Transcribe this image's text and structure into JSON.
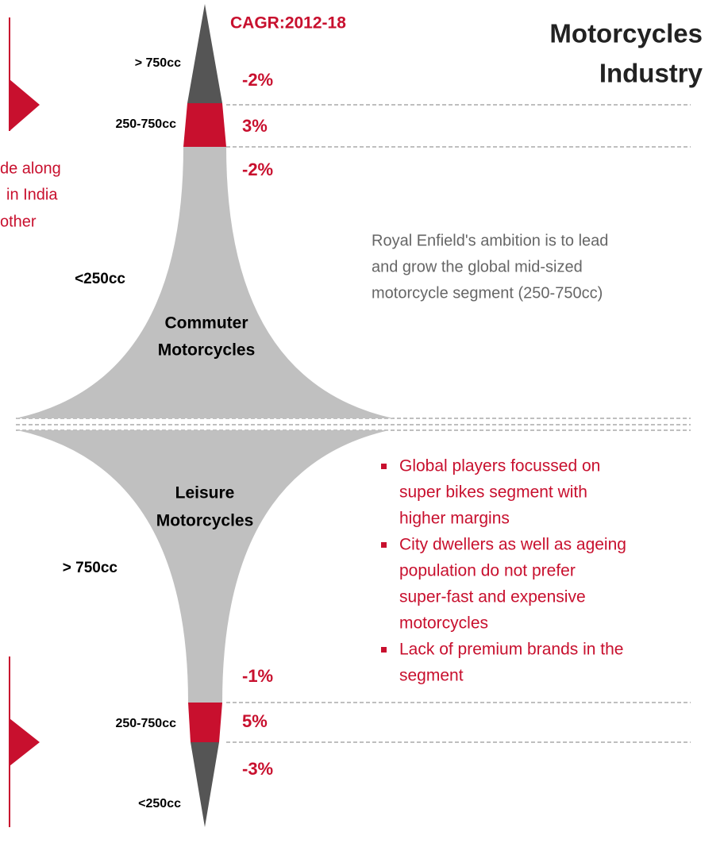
{
  "header": {
    "cagr": "CAGR:2012-18",
    "title": [
      "Motorcycles",
      "Industry"
    ]
  },
  "left_note": [
    "de along",
    "in India",
    "other"
  ],
  "commuter": {
    "label": [
      "Commuter",
      "Motorcycles"
    ],
    "segments": [
      {
        "name": "> 750cc",
        "cagr": "-2%"
      },
      {
        "name": "250-750cc",
        "cagr": "3%"
      },
      {
        "name": "<250cc",
        "cagr": "-2%"
      }
    ]
  },
  "ambition": [
    "Royal Enfield's ambition is to lead",
    "and grow the global mid-sized",
    "motorcycle segment (250-750cc)"
  ],
  "leisure": {
    "label": [
      "Leisure",
      "Motorcycles"
    ],
    "segments": [
      {
        "name": "> 750cc",
        "cagr": "-1%"
      },
      {
        "name": "250-750cc",
        "cagr": "5%"
      },
      {
        "name": "<250cc",
        "cagr": "-3%"
      }
    ]
  },
  "bullets": [
    [
      "Global players focussed on",
      "super bikes segment with",
      "higher margins"
    ],
    [
      "City dwellers as well as ageing",
      "population do not prefer",
      "super-fast and expensive",
      "motorcycles"
    ],
    [
      "Lack of premium brands in the",
      "segment"
    ]
  ]
}
